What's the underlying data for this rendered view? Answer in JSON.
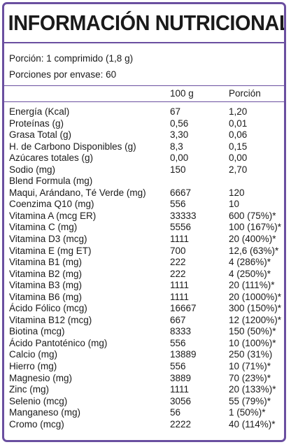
{
  "title": "INFORMACIÓN NUTRICIONAL",
  "serving": {
    "portion": "Porción: 1 comprimido (1,8 g)",
    "per_container": "Porciones por envase:   60"
  },
  "columns": {
    "per_100g": "100 g",
    "per_portion": "Porción"
  },
  "colors": {
    "border": "#6a4fa0"
  },
  "rows": [
    {
      "name": "Energía (Kcal)",
      "per_100g": "67",
      "per_portion": "1,20"
    },
    {
      "name": "Proteínas (g)",
      "per_100g": "0,56",
      "per_portion": "0,01"
    },
    {
      "name": "Grasa Total (g)",
      "per_100g": "3,30",
      "per_portion": "0,06"
    },
    {
      "name": "H. de Carbono Disponibles (g)",
      "per_100g": "8,3",
      "per_portion": "0,15"
    },
    {
      "name": "Azúcares totales (g)",
      "per_100g": "0,00",
      "per_portion": "0,00"
    },
    {
      "name": "Sodio (mg)",
      "per_100g": "150",
      "per_portion": "2,70"
    },
    {
      "name": "Blend Formula (mg)",
      "per_100g": "",
      "per_portion": ""
    },
    {
      "name": "Maqui, Arándano, Té Verde (mg)",
      "per_100g": "6667",
      "per_portion": "120"
    },
    {
      "name": "Coenzima Q10 (mg)",
      "per_100g": "556",
      "per_portion": "10"
    },
    {
      "name": "Vitamina A (mcg ER)",
      "per_100g": "33333",
      "per_portion": "600 (75%)*"
    },
    {
      "name": "Vitamina C (mg)",
      "per_100g": "5556",
      "per_portion": "100 (167%)*"
    },
    {
      "name": "Vitamina D3 (mcg)",
      "per_100g": "1111",
      "per_portion": "20 (400%)*"
    },
    {
      "name": "Vitamina E (mg ET)",
      "per_100g": "700",
      "per_portion": "12,6 (63%)*"
    },
    {
      "name": "Vitamina B1 (mg)",
      "per_100g": "222",
      "per_portion": "4 (286%)*"
    },
    {
      "name": "Vitamina B2 (mg)",
      "per_100g": "222",
      "per_portion": "4 (250%)*"
    },
    {
      "name": "Vitamina B3 (mg)",
      "per_100g": "1111",
      "per_portion": "20 (111%)*"
    },
    {
      "name": "Vitamina B6 (mg)",
      "per_100g": "1111",
      "per_portion": "20 (1000%)*"
    },
    {
      "name": "Ácido Fólico (mcg)",
      "per_100g": "16667",
      "per_portion": "300 (150%)*"
    },
    {
      "name": "Vitamina B12 (mcg)",
      "per_100g": "667",
      "per_portion": "12 (1200%)*"
    },
    {
      "name": "Biotina (mcg)",
      "per_100g": "8333",
      "per_portion": "150 (50%)*"
    },
    {
      "name": "Ácido Pantoténico (mg)",
      "per_100g": "556",
      "per_portion": "10 (100%)*"
    },
    {
      "name": "Calcio (mg)",
      "per_100g": "13889",
      "per_portion": "250 (31%)"
    },
    {
      "name": "Hierro (mg)",
      "per_100g": "556",
      "per_portion": "10 (71%)*"
    },
    {
      "name": "Magnesio (mg)",
      "per_100g": "3889",
      "per_portion": "70 (23%)*"
    },
    {
      "name": "Zinc (mg)",
      "per_100g": "1111",
      "per_portion": "20 (133%)*"
    },
    {
      "name": "Selenio (mcg)",
      "per_100g": "3056",
      "per_portion": "55 (79%)*"
    },
    {
      "name": "Manganeso (mg)",
      "per_100g": "56",
      "per_portion": "1 (50%)*"
    },
    {
      "name": "Cromo (mcg)",
      "per_100g": "2222",
      "per_portion": "40 (114%)*"
    }
  ]
}
